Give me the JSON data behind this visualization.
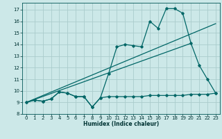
{
  "xlabel": "Humidex (Indice chaleur)",
  "bg_color": "#cce8e8",
  "grid_color": "#aacccc",
  "line_color": "#006666",
  "xlim": [
    -0.5,
    23.5
  ],
  "ylim": [
    8.0,
    17.6
  ],
  "xticks": [
    0,
    1,
    2,
    3,
    4,
    5,
    6,
    7,
    8,
    9,
    10,
    11,
    12,
    13,
    14,
    15,
    16,
    17,
    18,
    19,
    20,
    21,
    22,
    23
  ],
  "yticks": [
    8,
    9,
    10,
    11,
    12,
    13,
    14,
    15,
    16,
    17
  ],
  "line1_x": [
    0,
    1,
    2,
    3,
    4,
    5,
    6,
    7,
    8,
    9,
    10,
    11,
    12,
    13,
    14,
    15,
    16,
    17,
    18,
    19,
    20,
    21,
    22,
    23
  ],
  "line1_y": [
    9.0,
    9.2,
    9.1,
    9.3,
    9.9,
    9.8,
    9.5,
    9.5,
    8.6,
    9.4,
    11.5,
    13.8,
    14.0,
    13.9,
    13.8,
    16.0,
    15.4,
    17.1,
    17.1,
    16.7,
    14.1,
    12.2,
    11.0,
    9.8
  ],
  "line2_x": [
    0,
    1,
    2,
    3,
    4,
    5,
    6,
    7,
    8,
    9,
    10,
    11,
    12,
    13,
    14,
    15,
    16,
    17,
    18,
    19,
    20,
    21,
    22,
    23
  ],
  "line2_y": [
    9.0,
    9.2,
    9.1,
    9.3,
    9.9,
    9.8,
    9.5,
    9.5,
    8.6,
    9.4,
    9.5,
    9.5,
    9.5,
    9.5,
    9.5,
    9.6,
    9.6,
    9.6,
    9.6,
    9.6,
    9.7,
    9.7,
    9.7,
    9.8
  ],
  "line3_x": [
    0,
    23
  ],
  "line3_y": [
    9.0,
    15.8
  ],
  "line4_x": [
    0,
    20
  ],
  "line4_y": [
    9.0,
    14.1
  ]
}
